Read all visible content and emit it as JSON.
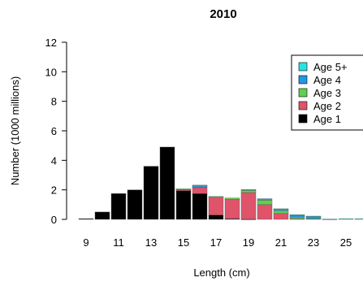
{
  "chart_data": {
    "type": "bar",
    "stacked": true,
    "title": "2010",
    "xlabel": "Length (cm)",
    "ylabel": "Number (1000 millions)",
    "ylim": [
      0,
      12
    ],
    "yticks": [
      0,
      2,
      4,
      6,
      8,
      10,
      12
    ],
    "xtick_labels": [
      "9",
      "11",
      "13",
      "15",
      "17",
      "19",
      "21",
      "23",
      "25"
    ],
    "categories": [
      9,
      10,
      11,
      12,
      13,
      14,
      15,
      16,
      17,
      18,
      19,
      20,
      21,
      22,
      23,
      24,
      25,
      26
    ],
    "series": [
      {
        "name": "Age 1",
        "color": "#000000",
        "values": [
          0.05,
          0.5,
          1.75,
          2.0,
          3.6,
          4.9,
          1.95,
          1.75,
          0.3,
          0.05,
          0.02,
          0.0,
          0.0,
          0.0,
          0.0,
          0.0,
          0.0,
          0.0
        ]
      },
      {
        "name": "Age 2",
        "color": "#df536b",
        "values": [
          0.0,
          0.0,
          0.0,
          0.0,
          0.0,
          0.0,
          0.1,
          0.4,
          1.2,
          1.3,
          1.8,
          1.0,
          0.4,
          0.05,
          0.0,
          0.0,
          0.0,
          0.0
        ]
      },
      {
        "name": "Age 3",
        "color": "#61d04f",
        "values": [
          0.0,
          0.0,
          0.0,
          0.0,
          0.0,
          0.0,
          0.02,
          0.05,
          0.05,
          0.1,
          0.15,
          0.3,
          0.2,
          0.1,
          0.05,
          0.0,
          0.0,
          0.0
        ]
      },
      {
        "name": "Age 4",
        "color": "#2297e6",
        "values": [
          0.0,
          0.0,
          0.0,
          0.0,
          0.0,
          0.0,
          0.0,
          0.1,
          0.0,
          0.0,
          0.05,
          0.1,
          0.1,
          0.15,
          0.15,
          0.02,
          0.0,
          0.0
        ]
      },
      {
        "name": "Age 5+",
        "color": "#28e2e5",
        "values": [
          0.0,
          0.0,
          0.0,
          0.0,
          0.0,
          0.0,
          0.0,
          0.02,
          0.0,
          0.0,
          0.0,
          0.0,
          0.02,
          0.02,
          0.02,
          0.0,
          0.05,
          0.05
        ]
      }
    ],
    "legend": {
      "position": "top-right",
      "order": [
        "Age 5+",
        "Age 4",
        "Age 3",
        "Age 2",
        "Age 1"
      ]
    },
    "grid": false
  }
}
